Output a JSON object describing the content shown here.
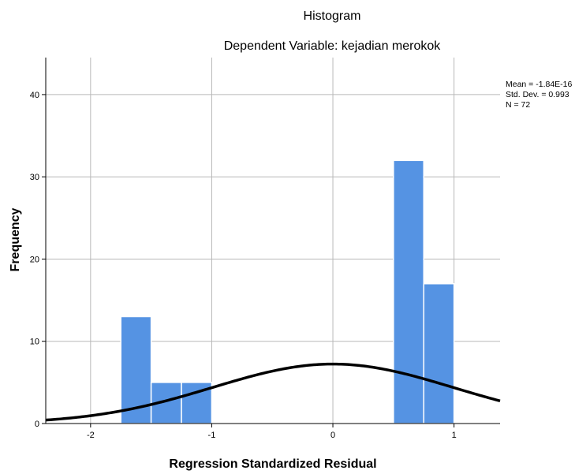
{
  "chart_data": {
    "type": "bar",
    "title": "Histogram",
    "subtitle": "Dependent Variable: kejadian merokok",
    "xlabel": "Regression Standardized Residual",
    "ylabel": "Frequency",
    "xlim": [
      -2.37,
      1.38
    ],
    "ylim": [
      0,
      44.5
    ],
    "x_ticks": [
      -2,
      -1,
      0,
      1
    ],
    "y_ticks": [
      0,
      10,
      20,
      30,
      40
    ],
    "grid": true,
    "bins": [
      {
        "x0": -1.75,
        "x1": -1.5,
        "count": 13
      },
      {
        "x0": -1.5,
        "x1": -1.25,
        "count": 5
      },
      {
        "x0": -1.25,
        "x1": -1.0,
        "count": 5
      },
      {
        "x0": 0.5,
        "x1": 0.75,
        "count": 32
      },
      {
        "x0": 0.75,
        "x1": 1.0,
        "count": 17
      }
    ],
    "normal_curve": {
      "mean": -1.84e-16,
      "sd": 0.993,
      "n": 72,
      "bin_width": 0.25
    },
    "stats": [
      "Mean = -1.84E-16",
      "Std. Dev. = 0.993",
      "N = 72"
    ],
    "colors": {
      "bar": "#5593e3",
      "bar_edge": "#ffffff",
      "curve": "#000000",
      "grid": "#b8b8b8",
      "axis": "#000000"
    }
  }
}
